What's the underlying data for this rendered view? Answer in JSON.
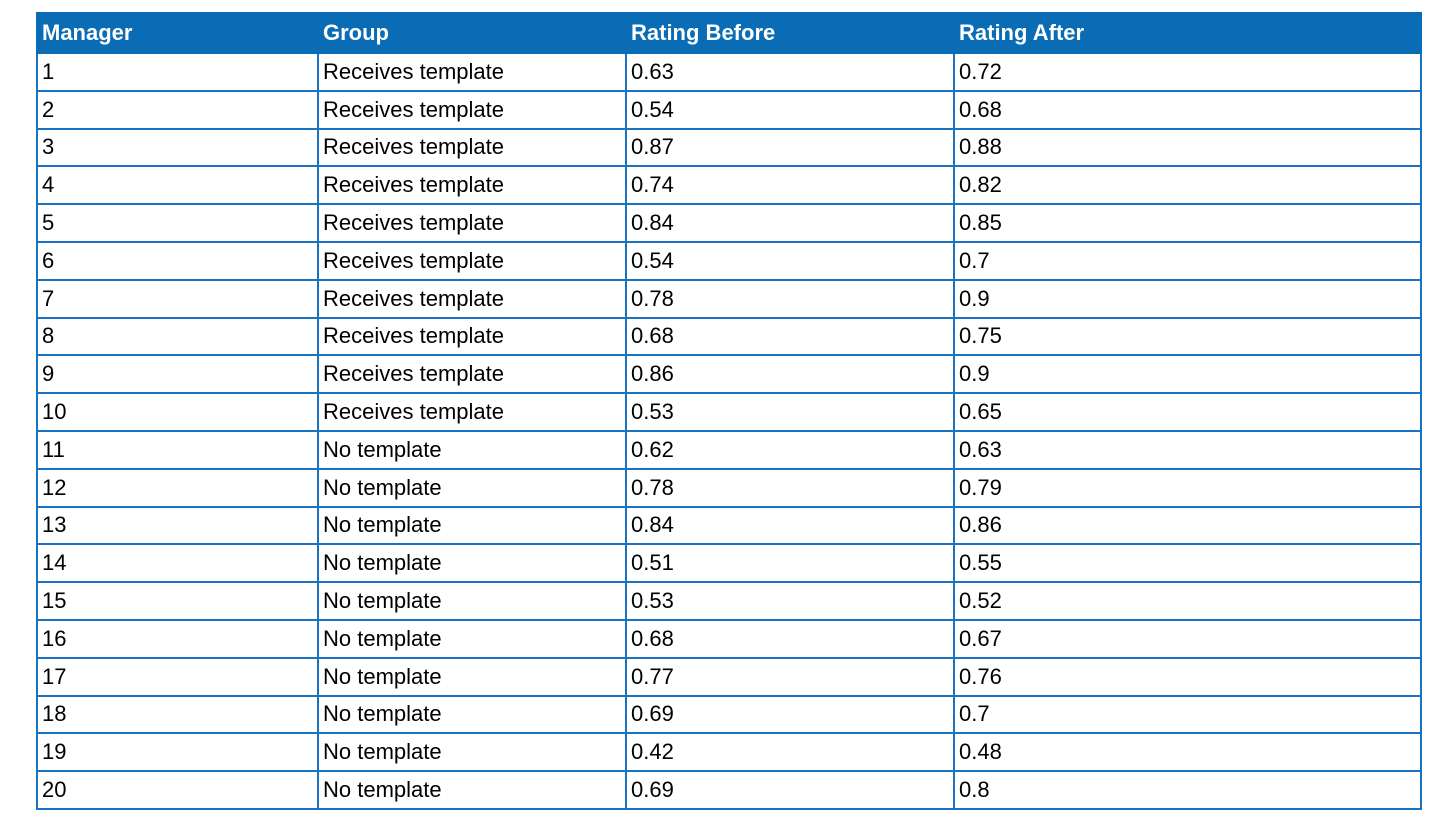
{
  "table": {
    "headers": [
      "Manager",
      "Group",
      "Rating Before",
      "Rating After"
    ],
    "rows": [
      [
        "1",
        "Receives template",
        "0.63",
        "0.72"
      ],
      [
        "2",
        "Receives template",
        "0.54",
        "0.68"
      ],
      [
        "3",
        "Receives template",
        "0.87",
        "0.88"
      ],
      [
        "4",
        "Receives template",
        "0.74",
        "0.82"
      ],
      [
        "5",
        "Receives template",
        "0.84",
        "0.85"
      ],
      [
        "6",
        "Receives template",
        "0.54",
        "0.7"
      ],
      [
        "7",
        "Receives template",
        "0.78",
        "0.9"
      ],
      [
        "8",
        "Receives template",
        "0.68",
        "0.75"
      ],
      [
        "9",
        "Receives template",
        "0.86",
        "0.9"
      ],
      [
        "10",
        "Receives template",
        "0.53",
        "0.65"
      ],
      [
        "11",
        "No template",
        "0.62",
        "0.63"
      ],
      [
        "12",
        "No template",
        "0.78",
        "0.79"
      ],
      [
        "13",
        "No template",
        "0.84",
        "0.86"
      ],
      [
        "14",
        "No template",
        "0.51",
        "0.55"
      ],
      [
        "15",
        "No template",
        "0.53",
        "0.52"
      ],
      [
        "16",
        "No template",
        "0.68",
        "0.67"
      ],
      [
        "17",
        "No template",
        "0.77",
        "0.76"
      ],
      [
        "18",
        "No template",
        "0.69",
        "0.7"
      ],
      [
        "19",
        "No template",
        "0.42",
        "0.48"
      ],
      [
        "20",
        "No template",
        "0.69",
        "0.8"
      ]
    ]
  },
  "colors": {
    "header_background": "#0a6cb4",
    "header_text": "#ffffff",
    "border": "#1a72c2"
  }
}
